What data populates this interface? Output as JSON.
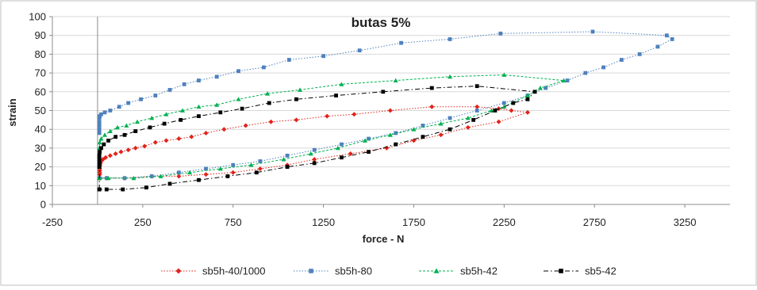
{
  "chart_data": {
    "type": "scatter",
    "title": "butas 5%",
    "xlabel": "force - N",
    "ylabel": "strain",
    "xlim": [
      -250,
      3500
    ],
    "ylim": [
      0,
      100
    ],
    "x_ticks": [
      -250,
      250,
      750,
      1250,
      1750,
      2250,
      2750,
      3250
    ],
    "y_ticks": [
      0,
      10,
      20,
      30,
      40,
      50,
      60,
      70,
      80,
      90,
      100
    ],
    "grid": "horizontal",
    "legend_position": "bottom",
    "series": [
      {
        "name": "sb5h-40/1000",
        "color": "#e2231a",
        "marker": "diamond",
        "points": [
          [
            12,
            16
          ],
          [
            12,
            17
          ],
          [
            12,
            18
          ],
          [
            12,
            19
          ],
          [
            12,
            20
          ],
          [
            14,
            21
          ],
          [
            16,
            22
          ],
          [
            20,
            23
          ],
          [
            30,
            24
          ],
          [
            45,
            25
          ],
          [
            70,
            26
          ],
          [
            100,
            27
          ],
          [
            130,
            28
          ],
          [
            170,
            29
          ],
          [
            210,
            30
          ],
          [
            260,
            31
          ],
          [
            320,
            33
          ],
          [
            380,
            34
          ],
          [
            450,
            35
          ],
          [
            520,
            36
          ],
          [
            600,
            38
          ],
          [
            700,
            40
          ],
          [
            820,
            42
          ],
          [
            960,
            44
          ],
          [
            1100,
            45
          ],
          [
            1270,
            47
          ],
          [
            1420,
            48
          ],
          [
            1620,
            50
          ],
          [
            1850,
            52
          ],
          [
            2100,
            52
          ],
          [
            2220,
            51
          ],
          [
            2290,
            50
          ],
          [
            2380,
            49
          ],
          [
            2220,
            44
          ],
          [
            2050,
            41
          ],
          [
            1900,
            37
          ],
          [
            1750,
            34
          ],
          [
            1600,
            30
          ],
          [
            1400,
            27
          ],
          [
            1200,
            24
          ],
          [
            1050,
            21
          ],
          [
            900,
            19
          ],
          [
            750,
            17
          ],
          [
            600,
            16
          ],
          [
            450,
            15
          ],
          [
            300,
            15
          ],
          [
            150,
            14
          ],
          [
            50,
            14
          ],
          [
            15,
            14
          ]
        ]
      },
      {
        "name": "sb5h-80",
        "color": "#4f81bd",
        "marker": "square",
        "points": [
          [
            10,
            38
          ],
          [
            10,
            40
          ],
          [
            10,
            42
          ],
          [
            10,
            44
          ],
          [
            10,
            46
          ],
          [
            12,
            47
          ],
          [
            20,
            48
          ],
          [
            40,
            49
          ],
          [
            70,
            50
          ],
          [
            120,
            52
          ],
          [
            170,
            54
          ],
          [
            240,
            56
          ],
          [
            320,
            58
          ],
          [
            400,
            61
          ],
          [
            480,
            64
          ],
          [
            560,
            66
          ],
          [
            660,
            68
          ],
          [
            780,
            71
          ],
          [
            920,
            73
          ],
          [
            1060,
            77
          ],
          [
            1250,
            79
          ],
          [
            1450,
            82
          ],
          [
            1680,
            86
          ],
          [
            1950,
            88
          ],
          [
            2230,
            91
          ],
          [
            2740,
            92
          ],
          [
            3150,
            90
          ],
          [
            3180,
            88
          ],
          [
            3100,
            84
          ],
          [
            3000,
            80
          ],
          [
            2900,
            77
          ],
          [
            2800,
            73
          ],
          [
            2700,
            70
          ],
          [
            2600,
            66
          ],
          [
            2480,
            62
          ],
          [
            2380,
            58
          ],
          [
            2250,
            54
          ],
          [
            2100,
            50
          ],
          [
            1950,
            46
          ],
          [
            1800,
            42
          ],
          [
            1650,
            38
          ],
          [
            1500,
            35
          ],
          [
            1350,
            32
          ],
          [
            1200,
            29
          ],
          [
            1050,
            26
          ],
          [
            900,
            23
          ],
          [
            750,
            21
          ],
          [
            600,
            19
          ],
          [
            450,
            17
          ],
          [
            300,
            15
          ],
          [
            150,
            14
          ],
          [
            50,
            14
          ],
          [
            12,
            14
          ]
        ]
      },
      {
        "name": "sb5h-42",
        "color": "#00b050",
        "marker": "triangle",
        "points": [
          [
            10,
            14
          ],
          [
            10,
            22
          ],
          [
            10,
            26
          ],
          [
            10,
            30
          ],
          [
            12,
            33
          ],
          [
            20,
            35
          ],
          [
            40,
            37
          ],
          [
            70,
            39
          ],
          [
            110,
            41
          ],
          [
            160,
            42
          ],
          [
            220,
            44
          ],
          [
            300,
            46
          ],
          [
            380,
            48
          ],
          [
            470,
            50
          ],
          [
            560,
            52
          ],
          [
            660,
            53
          ],
          [
            780,
            56
          ],
          [
            940,
            59
          ],
          [
            1120,
            61
          ],
          [
            1350,
            64
          ],
          [
            1650,
            66
          ],
          [
            1950,
            68
          ],
          [
            2250,
            69
          ],
          [
            2580,
            66
          ],
          [
            2450,
            62
          ],
          [
            2380,
            58
          ],
          [
            2250,
            52
          ],
          [
            2180,
            50
          ],
          [
            2050,
            46
          ],
          [
            1900,
            43
          ],
          [
            1750,
            40
          ],
          [
            1620,
            37
          ],
          [
            1480,
            34
          ],
          [
            1330,
            30
          ],
          [
            1180,
            27
          ],
          [
            1030,
            24
          ],
          [
            850,
            21
          ],
          [
            680,
            19
          ],
          [
            510,
            17
          ],
          [
            350,
            15
          ],
          [
            200,
            14
          ],
          [
            60,
            14
          ],
          [
            10,
            14
          ]
        ]
      },
      {
        "name": "sb5-42",
        "color": "#000000",
        "marker": "square",
        "points": [
          [
            10,
            8
          ],
          [
            10,
            20
          ],
          [
            10,
            22
          ],
          [
            10,
            24
          ],
          [
            10,
            26
          ],
          [
            12,
            28
          ],
          [
            20,
            30
          ],
          [
            35,
            32
          ],
          [
            60,
            34
          ],
          [
            100,
            36
          ],
          [
            150,
            37
          ],
          [
            210,
            39
          ],
          [
            290,
            41
          ],
          [
            370,
            43
          ],
          [
            460,
            45
          ],
          [
            560,
            47
          ],
          [
            680,
            49
          ],
          [
            800,
            51
          ],
          [
            950,
            54
          ],
          [
            1100,
            56
          ],
          [
            1320,
            58
          ],
          [
            1580,
            60
          ],
          [
            1850,
            62
          ],
          [
            2100,
            63
          ],
          [
            2420,
            60
          ],
          [
            2380,
            56
          ],
          [
            2300,
            54
          ],
          [
            2200,
            50
          ],
          [
            2080,
            45
          ],
          [
            1950,
            40
          ],
          [
            1800,
            36
          ],
          [
            1650,
            32
          ],
          [
            1500,
            28
          ],
          [
            1350,
            25
          ],
          [
            1200,
            22
          ],
          [
            1050,
            20
          ],
          [
            880,
            17
          ],
          [
            720,
            15
          ],
          [
            560,
            13
          ],
          [
            400,
            11
          ],
          [
            270,
            9
          ],
          [
            140,
            8
          ],
          [
            50,
            8
          ],
          [
            10,
            8
          ]
        ]
      }
    ]
  }
}
